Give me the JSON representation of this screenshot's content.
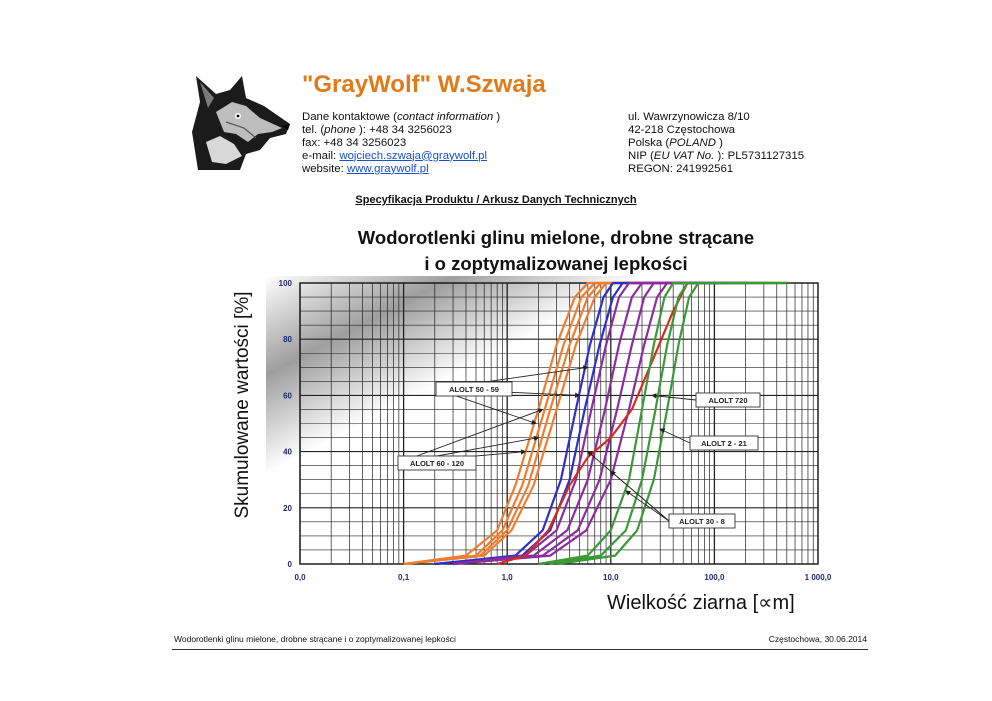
{
  "company": "\"GrayWolf\" W.Szwaja",
  "contact": {
    "line1_prefix": "Dane kontaktowe (",
    "line1_italic": "contact information",
    "line1_suffix": " )",
    "tel_prefix": "tel. (",
    "tel_italic": "phone",
    "tel_suffix": " ): +48 34 3256023",
    "fax": "fax: +48 34 3256023",
    "email_label": "e-mail: ",
    "email": "wojciech.szwaja@graywolf.pl",
    "website_label": "website: ",
    "website": "www.graywolf.pl"
  },
  "address": {
    "street": "ul. Wawrzynowicza 8/10",
    "city": "42-218 Częstochowa",
    "country_prefix": "Polska (",
    "country_italic": "POLAND",
    "country_suffix": " )",
    "nip_prefix": "NIP (",
    "nip_italic": "EU VAT No.",
    "nip_suffix": " ): PL5731127315",
    "regon": "REGON: 241992561"
  },
  "spec_heading": "Specyfikacja Produktu / Arkusz Danych Technicznych",
  "chart_title_line1": "Wodorotlenki glinu mielone, drobne strącane",
  "chart_title_line2": "i o zoptymalizowanej lepkości",
  "footer": {
    "left": "Wodorotlenki glinu mielone, drobne strącane i o zoptymalizowanej lepkości",
    "right": "Częstochowa, 30.06.2014"
  },
  "colors": {
    "orange": "#f07d2e",
    "blue": "#2f2fc8",
    "purple": "#8c2c9e",
    "red": "#d42d1e",
    "green": "#3a9a35",
    "brand": "#e07b1a"
  },
  "chart_data": {
    "type": "line",
    "xscale": "log",
    "xlabel": "Wielkość ziarna [∝m]",
    "ylabel": "Skumulowane wartości [%]",
    "xlim": [
      0.01,
      1000
    ],
    "ylim": [
      0,
      100
    ],
    "x_ticks": [
      "0,0",
      "0,1",
      "1,0",
      "10,0",
      "100,0",
      "1 000,0"
    ],
    "y_ticks": [
      "0",
      "20",
      "40",
      "60",
      "80",
      "100"
    ],
    "grid": true,
    "series": [
      {
        "group": "ALOLT 60 - 120",
        "color": "orange",
        "points": [
          [
            0.1,
            0
          ],
          [
            0.4,
            3
          ],
          [
            0.8,
            12
          ],
          [
            1.2,
            28
          ],
          [
            2,
            55
          ],
          [
            3,
            78
          ],
          [
            4.5,
            95
          ],
          [
            6,
            100
          ]
        ]
      },
      {
        "group": "ALOLT 60 - 120",
        "color": "orange",
        "points": [
          [
            0.1,
            0
          ],
          [
            0.5,
            3
          ],
          [
            0.9,
            12
          ],
          [
            1.4,
            28
          ],
          [
            2.3,
            55
          ],
          [
            3.5,
            78
          ],
          [
            5.2,
            95
          ],
          [
            7,
            100
          ]
        ]
      },
      {
        "group": "ALOLT 60 - 120",
        "color": "orange",
        "points": [
          [
            0.1,
            0
          ],
          [
            0.55,
            3
          ],
          [
            1,
            12
          ],
          [
            1.6,
            28
          ],
          [
            2.6,
            55
          ],
          [
            4,
            78
          ],
          [
            6,
            95
          ],
          [
            8,
            100
          ]
        ]
      },
      {
        "group": "ALOLT 60 - 120",
        "color": "orange",
        "points": [
          [
            0.1,
            0
          ],
          [
            0.6,
            3
          ],
          [
            1.1,
            12
          ],
          [
            1.8,
            28
          ],
          [
            3,
            55
          ],
          [
            4.6,
            78
          ],
          [
            7,
            95
          ],
          [
            9,
            100
          ]
        ]
      },
      {
        "group": "ALOLT 50 - 59",
        "color": "blue",
        "points": [
          [
            0.2,
            0
          ],
          [
            1.2,
            3
          ],
          [
            2.2,
            12
          ],
          [
            3.3,
            30
          ],
          [
            4.6,
            55
          ],
          [
            6.3,
            78
          ],
          [
            8.5,
            95
          ],
          [
            10.5,
            100
          ]
        ]
      },
      {
        "group": "ALOLT 50 - 59",
        "color": "blue",
        "points": [
          [
            0.2,
            0
          ],
          [
            1.4,
            3
          ],
          [
            2.6,
            12
          ],
          [
            4,
            30
          ],
          [
            5.6,
            55
          ],
          [
            7.8,
            78
          ],
          [
            10.5,
            95
          ],
          [
            13,
            100
          ]
        ]
      },
      {
        "group": "ALOLT 30 - 8",
        "color": "purple",
        "points": [
          [
            0.3,
            0
          ],
          [
            1.5,
            3
          ],
          [
            3,
            12
          ],
          [
            4.6,
            30
          ],
          [
            6.5,
            55
          ],
          [
            9,
            78
          ],
          [
            12,
            95
          ],
          [
            15,
            100
          ]
        ]
      },
      {
        "group": "ALOLT 30 - 8",
        "color": "purple",
        "points": [
          [
            0.3,
            0
          ],
          [
            1.8,
            3
          ],
          [
            3.8,
            12
          ],
          [
            6,
            30
          ],
          [
            8.8,
            55
          ],
          [
            12,
            78
          ],
          [
            16,
            95
          ],
          [
            20,
            100
          ]
        ]
      },
      {
        "group": "ALOLT 30 - 8",
        "color": "purple",
        "points": [
          [
            0.3,
            0
          ],
          [
            2.2,
            3
          ],
          [
            4.8,
            12
          ],
          [
            7.8,
            30
          ],
          [
            11.5,
            55
          ],
          [
            16,
            78
          ],
          [
            21,
            95
          ],
          [
            26,
            100
          ]
        ]
      },
      {
        "group": "ALOLT 30 - 8",
        "color": "purple",
        "points": [
          [
            0.3,
            0
          ],
          [
            2.6,
            3
          ],
          [
            5.8,
            12
          ],
          [
            10,
            30
          ],
          [
            15,
            55
          ],
          [
            21,
            78
          ],
          [
            28,
            95
          ],
          [
            35,
            100
          ]
        ]
      },
      {
        "group": "ALOLT 720",
        "color": "red",
        "points": [
          [
            0.8,
            0
          ],
          [
            1.5,
            3
          ],
          [
            2.5,
            12
          ],
          [
            4,
            28
          ],
          [
            6,
            38
          ],
          [
            10,
            45
          ],
          [
            16,
            55
          ],
          [
            25,
            72
          ],
          [
            40,
            90
          ],
          [
            55,
            100
          ]
        ]
      },
      {
        "group": "ALOLT 2 - 21",
        "color": "green",
        "points": [
          [
            2,
            0
          ],
          [
            6,
            3
          ],
          [
            10,
            12
          ],
          [
            15,
            30
          ],
          [
            20,
            55
          ],
          [
            26,
            78
          ],
          [
            33,
            95
          ],
          [
            40,
            100
          ]
        ]
      },
      {
        "group": "ALOLT 2 - 21",
        "color": "green",
        "points": [
          [
            2.5,
            0
          ],
          [
            8,
            3
          ],
          [
            14,
            12
          ],
          [
            20,
            30
          ],
          [
            27,
            55
          ],
          [
            35,
            78
          ],
          [
            45,
            95
          ],
          [
            55,
            100
          ]
        ]
      },
      {
        "group": "ALOLT 2 - 21",
        "color": "green",
        "points": [
          [
            3,
            0
          ],
          [
            11,
            3
          ],
          [
            18,
            12
          ],
          [
            26,
            30
          ],
          [
            35,
            55
          ],
          [
            45,
            78
          ],
          [
            57,
            95
          ],
          [
            70,
            100
          ]
        ]
      }
    ],
    "annotations": [
      "ALOLT 50 - 59",
      "ALOLT 60 - 120",
      "ALOLT 720",
      "ALOLT 2 - 21",
      "ALOLT 30 - 8"
    ]
  }
}
